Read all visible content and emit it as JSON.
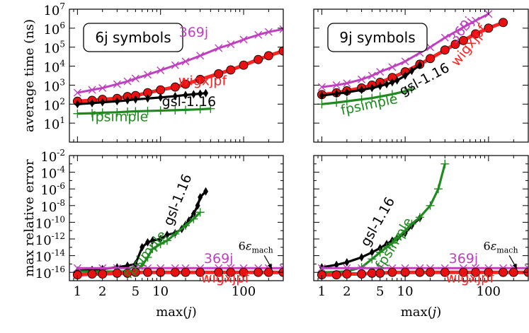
{
  "chart_data": {
    "type": "line",
    "y_axis_top": {
      "label": "average time (ns)",
      "ylim_exp": [
        0,
        7
      ],
      "ticks_exp": [
        1,
        2,
        3,
        4,
        5,
        6,
        7
      ]
    },
    "y_axis_bottom": {
      "label": "max relative error",
      "ylim_exp": [
        -17,
        -2
      ],
      "ticks_exp": [
        -16,
        -14,
        -12,
        -10,
        -8,
        -6,
        -4,
        -2
      ]
    },
    "x_axis": {
      "label_pre": "max(",
      "label_var": "j",
      "label_post": ")",
      "xlim": [
        0.8,
        300
      ],
      "ticks": [
        {
          "value": 1,
          "label": "1"
        },
        {
          "value": 2,
          "label": "2"
        },
        {
          "value": 5,
          "label": "5"
        },
        {
          "value": 10,
          "label": "10"
        },
        {
          "value": 100,
          "label": "100"
        }
      ]
    },
    "colors": {
      "wigxjpf": "#ff2222",
      "wigxjpf_marker": "#e81010",
      "gsl": "#000000",
      "fpsimple": "#1f8a1f",
      "j369": "#bf40bf"
    },
    "annotation": {
      "text_pre": "6",
      "text_eps": "ε",
      "text_sub": "mach"
    },
    "panels": [
      {
        "id": "6j-time",
        "title": "6j symbols",
        "row": "top",
        "col": 0,
        "series": [
          {
            "name": "369j",
            "key": "j369",
            "marker": "x",
            "x": [
              1,
              1.5,
              2,
              3,
              4,
              5,
              7,
              10,
              15,
              20,
              30,
              50,
              70,
              100,
              150,
              200,
              300
            ],
            "y_exp": [
              2.6,
              2.75,
              2.85,
              3.05,
              3.2,
              3.35,
              3.55,
              3.78,
              4.05,
              4.25,
              4.55,
              4.95,
              5.15,
              5.4,
              5.65,
              5.8,
              5.95
            ]
          },
          {
            "name": "wigxjpf",
            "key": "wigxjpf",
            "marker": "o",
            "x": [
              1,
              1.5,
              2,
              3,
              4,
              5,
              7,
              10,
              15,
              20,
              30,
              50,
              70,
              100,
              150,
              200,
              300
            ],
            "y_exp": [
              2.15,
              2.2,
              2.25,
              2.3,
              2.4,
              2.45,
              2.6,
              2.75,
              2.9,
              3.05,
              3.3,
              3.6,
              3.8,
              4.05,
              4.35,
              4.55,
              4.8
            ]
          },
          {
            "name": "gsl-1.16",
            "key": "gsl",
            "marker": "d",
            "x": [
              1,
              1.5,
              2,
              3,
              4,
              5,
              7,
              10,
              15,
              20,
              25,
              30,
              35
            ],
            "y_exp": [
              2.0,
              2.05,
              2.1,
              2.15,
              2.2,
              2.25,
              2.3,
              2.35,
              2.42,
              2.48,
              2.52,
              2.55,
              2.58
            ]
          },
          {
            "name": "fpsimple",
            "key": "fpsimple",
            "marker": "+",
            "x": [
              1,
              1.5,
              2,
              3,
              4,
              5,
              7,
              10,
              15,
              20,
              30,
              40
            ],
            "y_exp": [
              1.5,
              1.52,
              1.55,
              1.57,
              1.6,
              1.62,
              1.64,
              1.66,
              1.68,
              1.7,
              1.73,
              1.76
            ]
          }
        ],
        "labels": [
          {
            "text": "369j",
            "key": "j369",
            "x": 25,
            "y_exp": 5.55,
            "rot": 0
          },
          {
            "text": "wigxjpf",
            "key": "wigxjpf",
            "x": 32,
            "y_exp": 3.0,
            "rot": 0
          },
          {
            "text": "gsl-1.16",
            "key": "gsl",
            "x": 22,
            "y_exp": 1.9,
            "rot": 0
          },
          {
            "text": "fpsimple",
            "key": "fpsimple",
            "x": 3.2,
            "y_exp": 1.1,
            "rot": 0
          }
        ]
      },
      {
        "id": "9j-time",
        "title": "9j symbols",
        "row": "top",
        "col": 1,
        "series": [
          {
            "name": "369j",
            "key": "j369",
            "marker": "x",
            "x": [
              1,
              1.5,
              2,
              3,
              4,
              5,
              7,
              10,
              15,
              20,
              30,
              50,
              70,
              100
            ],
            "y_exp": [
              2.9,
              3.0,
              3.1,
              3.3,
              3.5,
              3.7,
              3.95,
              4.25,
              4.7,
              5.0,
              5.5,
              6.05,
              6.4,
              6.75
            ]
          },
          {
            "name": "wigxjpf",
            "key": "wigxjpf",
            "marker": "o",
            "x": [
              1,
              1.5,
              2,
              3,
              4,
              5,
              7,
              10,
              15,
              20,
              30,
              40,
              50,
              70,
              100,
              150
            ],
            "y_exp": [
              2.5,
              2.6,
              2.7,
              2.85,
              3.0,
              3.15,
              3.4,
              3.7,
              4.1,
              4.4,
              4.85,
              5.15,
              5.35,
              5.7,
              6.0,
              6.3
            ]
          },
          {
            "name": "gsl-1.16",
            "key": "gsl",
            "marker": "d",
            "x": [
              1,
              1.5,
              2,
              3,
              4,
              5,
              6,
              7,
              8,
              10,
              12,
              15
            ],
            "y_exp": [
              2.45,
              2.55,
              2.62,
              2.75,
              2.85,
              2.95,
              3.05,
              3.15,
              3.25,
              3.5,
              3.75,
              4.05
            ]
          },
          {
            "name": "fpsimple",
            "key": "fpsimple",
            "marker": "+",
            "x": [
              1,
              1.5,
              2,
              3,
              4,
              5,
              7,
              10,
              12
            ],
            "y_exp": [
              2.0,
              2.08,
              2.15,
              2.25,
              2.32,
              2.4,
              2.52,
              2.68,
              2.8
            ]
          }
        ],
        "labels": [
          {
            "text": "369j",
            "key": "j369",
            "x": 52,
            "y_exp": 5.75,
            "rot": -50
          },
          {
            "text": "wigxjpf",
            "key": "wigxjpf",
            "x": 64,
            "y_exp": 4.95,
            "rot": -52
          },
          {
            "text": "gsl-1.16",
            "key": "gsl",
            "x": 18,
            "y_exp": 3.1,
            "rot": -28
          },
          {
            "text": "fpsimple",
            "key": "fpsimple",
            "x": 3.8,
            "y_exp": 1.75,
            "rot": -12
          }
        ]
      },
      {
        "id": "6j-error",
        "title": "",
        "row": "bottom",
        "col": 0,
        "series": [
          {
            "name": "gsl-1.16",
            "key": "gsl",
            "marker": "d",
            "x": [
              1,
              1.5,
              2,
              3,
              4,
              5,
              6,
              7,
              8,
              10,
              12,
              15,
              18,
              20,
              22,
              25,
              28,
              30,
              35
            ],
            "y_exp": [
              -15.8,
              -15.7,
              -15.6,
              -15.4,
              -15.2,
              -15.0,
              -13.0,
              -12.4,
              -12.2,
              -12.0,
              -11.5,
              -11.3,
              -10.8,
              -10.3,
              -9.8,
              -9.0,
              -8.0,
              -7.0,
              -6.3
            ]
          },
          {
            "name": "fpsimple",
            "key": "fpsimple",
            "marker": "+",
            "x": [
              1,
              2,
              3,
              4,
              5,
              6,
              7,
              8,
              10,
              12,
              15,
              20,
              25,
              30
            ],
            "y_exp": [
              -15.9,
              -15.9,
              -15.9,
              -15.9,
              -15.9,
              -15.2,
              -14.2,
              -13.2,
              -12.6,
              -12.2,
              -11.4,
              -10.4,
              -9.6,
              -8.8
            ]
          },
          {
            "name": "369j",
            "key": "j369",
            "marker": "x",
            "x": [
              1,
              2,
              3,
              5,
              7,
              10,
              15,
              20,
              30,
              50,
              70,
              100,
              150,
              200,
              300
            ],
            "y_exp": [
              -15.5,
              -15.5,
              -15.5,
              -15.5,
              -15.5,
              -15.5,
              -15.5,
              -15.5,
              -15.5,
              -15.5,
              -15.5,
              -15.5,
              -15.5,
              -15.5,
              -15.5
            ]
          },
          {
            "name": "wigxjpf",
            "key": "wigxjpf",
            "marker": "o",
            "x": [
              1,
              1.5,
              2,
              3,
              4,
              5,
              7,
              10,
              15,
              20,
              30,
              50,
              70,
              100,
              150,
              200,
              300
            ],
            "y_exp": [
              -16.3,
              -16.2,
              -16.2,
              -16.1,
              -16.1,
              -16.0,
              -16.0,
              -16.0,
              -16.0,
              -16.0,
              -16.0,
              -16.0,
              -16.0,
              -16.0,
              -16.0,
              -16.0,
              -16.0
            ]
          }
        ],
        "labels": [
          {
            "text": "gsl-1.16",
            "key": "gsl",
            "x": 18,
            "y_exp": -7.5,
            "rot": -68
          },
          {
            "text": "fpsimple",
            "key": "fpsimple",
            "x": 7.2,
            "y_exp": -14.2,
            "rot": -50
          },
          {
            "text": "369j",
            "key": "j369",
            "x": 50,
            "y_exp": -14.9,
            "rot": 0
          },
          {
            "text": "wigxjpf",
            "key": "wigxjpf",
            "x": 60,
            "y_exp": -17.2,
            "rot": 0
          }
        ],
        "annot": {
          "tx": 140,
          "ty_exp": -13.3,
          "ax": 220,
          "ay_exp": -15.6
        }
      },
      {
        "id": "9j-error",
        "title": "",
        "row": "bottom",
        "col": 1,
        "series": [
          {
            "name": "gsl-1.16",
            "key": "gsl",
            "marker": "d",
            "x": [
              1,
              1.5,
              2,
              3,
              4,
              5,
              6,
              7,
              8,
              10,
              12,
              15
            ],
            "y_exp": [
              -15.4,
              -15.1,
              -14.8,
              -14.2,
              -13.6,
              -13.1,
              -12.6,
              -12.2,
              -11.9,
              -11.3,
              -10.4,
              -9.5
            ]
          },
          {
            "name": "fpsimple",
            "key": "fpsimple",
            "marker": "+",
            "x": [
              1,
              2,
              3,
              4,
              5,
              6,
              7,
              8,
              10,
              12,
              15,
              20,
              25,
              30
            ],
            "y_exp": [
              -16.0,
              -15.9,
              -15.4,
              -14.4,
              -13.6,
              -13.0,
              -12.5,
              -11.9,
              -11.0,
              -10.2,
              -9.4,
              -8.0,
              -6.0,
              -3.0
            ]
          },
          {
            "name": "369j",
            "key": "j369",
            "marker": "x",
            "x": [
              1,
              2,
              3,
              5,
              7,
              10,
              15,
              20,
              30,
              50,
              70,
              100,
              150,
              200,
              300
            ],
            "y_exp": [
              -15.5,
              -15.5,
              -15.5,
              -15.5,
              -15.5,
              -15.5,
              -15.5,
              -15.5,
              -15.5,
              -15.5,
              -15.5,
              -15.5,
              -15.5,
              -15.5,
              -15.5
            ]
          },
          {
            "name": "wigxjpf",
            "key": "wigxjpf",
            "marker": "o",
            "x": [
              1,
              1.5,
              2,
              3,
              4,
              5,
              7,
              10,
              15,
              20,
              30,
              50,
              70,
              100,
              150,
              200,
              300
            ],
            "y_exp": [
              -16.3,
              -16.3,
              -16.2,
              -16.2,
              -16.1,
              -16.1,
              -16.0,
              -16.0,
              -16.0,
              -16.0,
              -16.0,
              -16.0,
              -16.0,
              -16.0,
              -16.0,
              -16.0,
              -16.0
            ]
          }
        ],
        "labels": [
          {
            "text": "gsl-1.16",
            "key": "gsl",
            "x": 5.2,
            "y_exp": -10.2,
            "rot": -60
          },
          {
            "text": "fpsimple",
            "key": "fpsimple",
            "x": 8.2,
            "y_exp": -12.8,
            "rot": -58
          },
          {
            "text": "369j",
            "key": "j369",
            "x": 50,
            "y_exp": -14.9,
            "rot": 0
          },
          {
            "text": "wigxjpf",
            "key": "wigxjpf",
            "x": 60,
            "y_exp": -17.2,
            "rot": 0
          }
        ],
        "annot": {
          "tx": 140,
          "ty_exp": -13.3,
          "ax": 220,
          "ay_exp": -15.6
        }
      }
    ]
  }
}
